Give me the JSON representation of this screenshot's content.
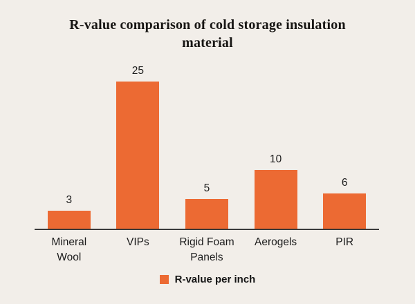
{
  "header": {
    "title": "R-value comparison of cold storage insulation material"
  },
  "legend": {
    "label": "R-value per inch",
    "swatch_color": "#EC6A33"
  },
  "colors": {
    "background": "#F2EEE9",
    "bar": "#EC6A33",
    "text": "#1D1D1D",
    "axis": "#3A3A3A"
  },
  "chart_data": {
    "type": "bar",
    "categories": [
      "Mineral Wool",
      "VIPs",
      "Rigid Foam Panels",
      "Aerogels",
      "PIR"
    ],
    "values": [
      3,
      25,
      5,
      10,
      6
    ],
    "title": "R-value comparison of cold storage insulation material",
    "xlabel": "",
    "ylabel": "",
    "ylim": [
      0,
      25
    ],
    "grid": false,
    "legend": [
      "R-value per inch"
    ],
    "legend_position": "bottom",
    "bar_color": "#EC6A33"
  }
}
